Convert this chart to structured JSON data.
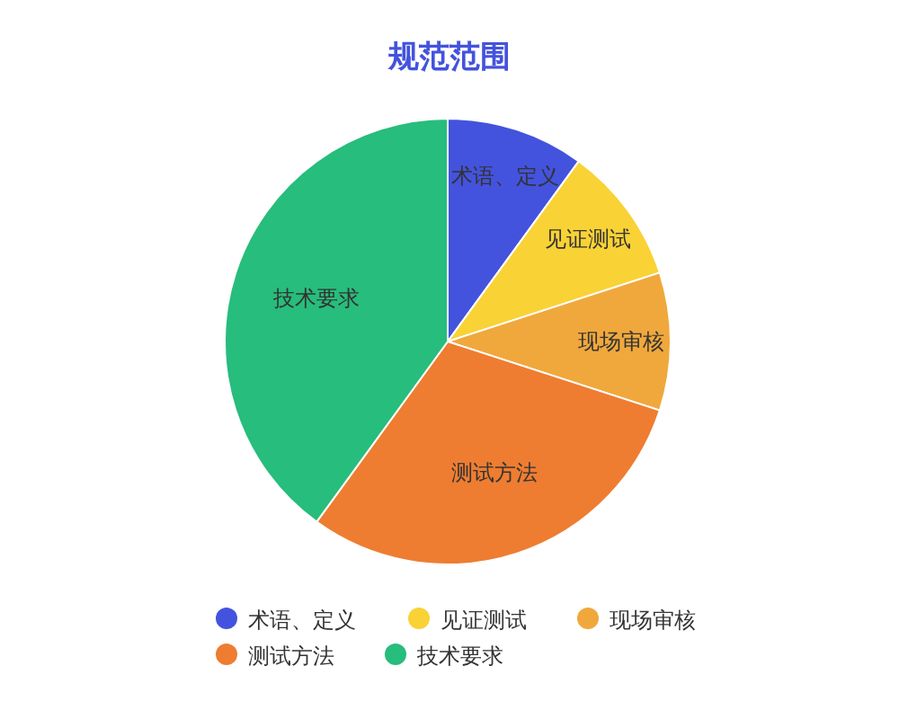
{
  "chart_data": {
    "type": "pie",
    "title": "规范范围",
    "legend": "bottom",
    "data_labels": false,
    "categories": [
      "术语、定义",
      "见证测试",
      "现场审核",
      "测试方法",
      "技术要求"
    ],
    "values": [
      10,
      10,
      10,
      30,
      40
    ],
    "colors": [
      "#4353dd",
      "#f9d235",
      "#f0a83c",
      "#ee7d31",
      "#27bd7c"
    ]
  }
}
